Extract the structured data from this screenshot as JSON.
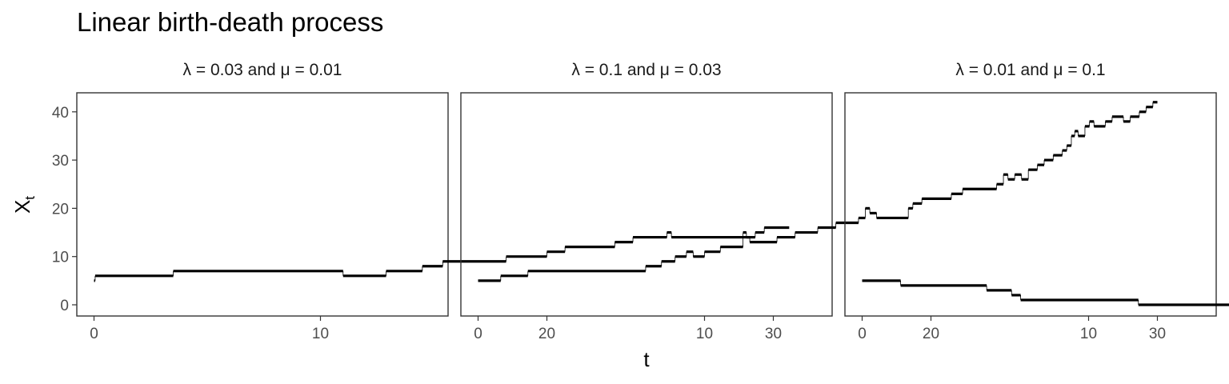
{
  "chart_data": {
    "type": "line",
    "title": "Linear birth-death process",
    "xlabel": "t",
    "ylabel": {
      "main": "X",
      "sub": "t"
    },
    "xlim": [
      0,
      30
    ],
    "ylim": [
      0,
      42
    ],
    "x_ticks": [
      0,
      10,
      20,
      30
    ],
    "y_ticks": [
      0,
      10,
      20,
      30,
      40
    ],
    "grid": false,
    "legend": "none",
    "colors": {
      "line": "#000000",
      "border": "#333333",
      "tick_text": "#4d4d4d"
    },
    "panels": [
      {
        "label": "λ = 0.03 and μ = 0.01",
        "x_end": 30.7,
        "points": [
          [
            0.0,
            5
          ],
          [
            0.05,
            6
          ],
          [
            3.5,
            7
          ],
          [
            11.0,
            6
          ],
          [
            12.9,
            7
          ],
          [
            14.5,
            8
          ],
          [
            15.4,
            9
          ],
          [
            18.2,
            10
          ],
          [
            20.0,
            11
          ],
          [
            20.8,
            12
          ],
          [
            23.0,
            13
          ],
          [
            23.8,
            14
          ],
          [
            25.3,
            15
          ],
          [
            25.5,
            14
          ],
          [
            29.2,
            15
          ],
          [
            29.6,
            16
          ]
        ]
      },
      {
        "label": "λ = 0.1 and μ = 0.03",
        "x_end": 30.0,
        "points": [
          [
            0.0,
            5
          ],
          [
            1.0,
            6
          ],
          [
            2.2,
            7
          ],
          [
            7.4,
            8
          ],
          [
            8.1,
            9
          ],
          [
            8.7,
            10
          ],
          [
            9.2,
            11
          ],
          [
            9.5,
            10
          ],
          [
            10.0,
            11
          ],
          [
            10.7,
            12
          ],
          [
            11.7,
            15
          ],
          [
            11.85,
            14
          ],
          [
            12.0,
            13
          ],
          [
            13.2,
            14
          ],
          [
            14.0,
            15
          ],
          [
            15.0,
            16
          ],
          [
            15.8,
            17
          ],
          [
            16.8,
            18
          ],
          [
            17.1,
            20
          ],
          [
            17.3,
            19
          ],
          [
            17.6,
            18
          ],
          [
            19.0,
            20
          ],
          [
            19.2,
            21
          ],
          [
            19.6,
            22
          ],
          [
            20.9,
            23
          ],
          [
            21.4,
            24
          ],
          [
            22.9,
            25
          ],
          [
            23.2,
            27
          ],
          [
            23.4,
            26
          ],
          [
            23.7,
            27
          ],
          [
            24.0,
            26
          ],
          [
            24.3,
            28
          ],
          [
            24.7,
            29
          ],
          [
            25.0,
            30
          ],
          [
            25.4,
            31
          ],
          [
            25.8,
            32
          ],
          [
            26.0,
            33
          ],
          [
            26.2,
            35
          ],
          [
            26.35,
            36
          ],
          [
            26.5,
            35
          ],
          [
            26.8,
            37
          ],
          [
            27.0,
            38
          ],
          [
            27.2,
            37
          ],
          [
            27.7,
            38
          ],
          [
            28.0,
            39
          ],
          [
            28.5,
            38
          ],
          [
            28.8,
            39
          ],
          [
            29.2,
            40
          ],
          [
            29.5,
            41
          ],
          [
            29.8,
            42
          ]
        ]
      },
      {
        "label": "λ = 0.01 and μ = 0.1",
        "x_end": 30.0,
        "points": [
          [
            0.0,
            5
          ],
          [
            1.7,
            4
          ],
          [
            5.5,
            3
          ],
          [
            6.6,
            2
          ],
          [
            7.0,
            1
          ],
          [
            12.2,
            0
          ]
        ]
      }
    ]
  }
}
